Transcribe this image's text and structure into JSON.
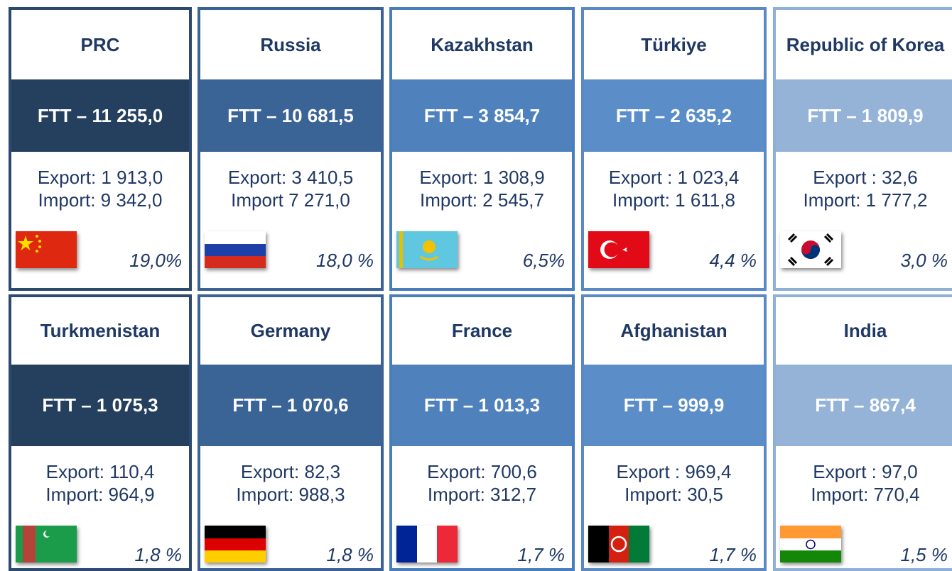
{
  "cards": [
    {
      "country": "PRC",
      "ftt": "FTT – 11 255,0",
      "export": "Export: 1 913,0",
      "import": "Import: 9 342,0",
      "share": "19,0%"
    },
    {
      "country": "Russia",
      "ftt": "FTT – 10 681,5",
      "export": "Export: 3 410,5",
      "import": "Import 7 271,0",
      "share": "18,0 %"
    },
    {
      "country": "Kazakhstan",
      "ftt": "FTT – 3 854,7",
      "export": "Export: 1 308,9",
      "import": "Import: 2 545,7",
      "share": "6,5%"
    },
    {
      "country": "Türkiye",
      "ftt": "FTT – 2 635,2",
      "export": "Export : 1 023,4",
      "import": "Import: 1 611,8",
      "share": "4,4 %"
    },
    {
      "country": "Republic of Korea",
      "ftt": "FTT – 1 809,9",
      "export": "Export : 32,6",
      "import": "Import: 1 777,2",
      "share": "3,0 %"
    },
    {
      "country": "Turkmenistan",
      "ftt": "FTT – 1 075,3",
      "export": "Export: 110,4",
      "import": "Import: 964,9",
      "share": "1,8 %"
    },
    {
      "country": "Germany",
      "ftt": "FTT – 1 070,6",
      "export": "Export: 82,3",
      "import": "Import: 988,3",
      "share": "1,8 %"
    },
    {
      "country": "France",
      "ftt": "FTT – 1 013,3",
      "export": "Export: 700,6",
      "import": "Import: 312,7",
      "share": "1,7 %"
    },
    {
      "country": "Afghanistan",
      "ftt": "FTT – 999,9",
      "export": "Export : 969,4",
      "import": "Import: 30,5",
      "share": "1,7 %"
    },
    {
      "country": "India",
      "ftt": "FTT – 867,4",
      "export": "Export : 97,0",
      "import": "Import: 770,4",
      "share": "1,5 %"
    }
  ]
}
